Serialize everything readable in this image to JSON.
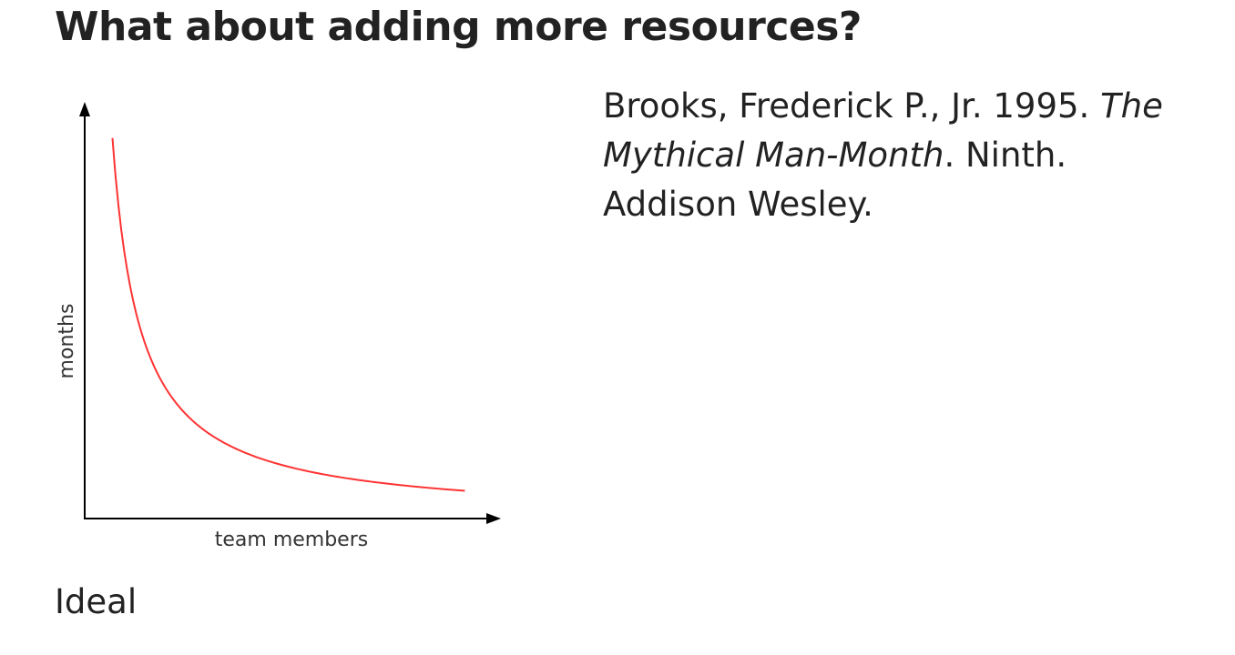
{
  "slide": {
    "title": "What about adding more resources?",
    "caption": "Ideal"
  },
  "citation": {
    "authors_year": "Brooks, Frederick P., Jr. 1995. ",
    "book_title": "The Mythical Man-Month",
    "details": ". Ninth. Addison Wesley."
  },
  "chart_data": {
    "type": "line",
    "xlabel": "team members",
    "ylabel": "months",
    "x_ticks": [],
    "y_ticks": [],
    "grid": false,
    "series": [
      {
        "color": "#ff3333",
        "x": [
          1,
          1.5,
          2,
          3,
          4,
          5,
          6,
          8,
          10,
          12,
          13.7
        ],
        "y": [
          13.7,
          9.13,
          6.85,
          4.57,
          3.43,
          2.74,
          2.28,
          1.71,
          1.37,
          1.14,
          1.0
        ]
      }
    ],
    "xlim": [
      0,
      15
    ],
    "ylim": [
      0,
      15
    ]
  }
}
